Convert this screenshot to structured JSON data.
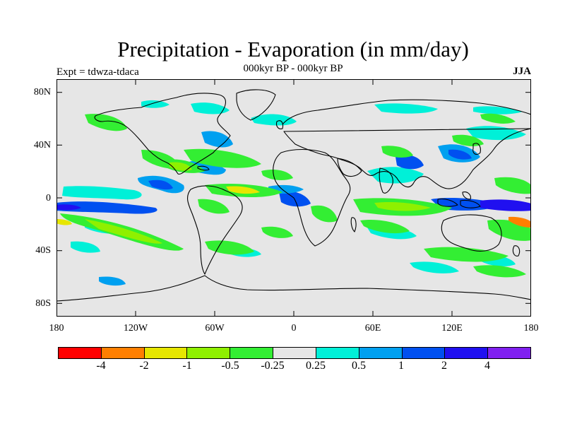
{
  "title": "Precipitation - Evaporation (in mm/day)",
  "subtitle": "000kyr BP - 000kyr BP",
  "left_label": "Expt = tdwza-tdaca",
  "season": "JJA",
  "lat_labels": [
    "80N",
    "40N",
    "0",
    "40S",
    "80S"
  ],
  "lon_labels": [
    "180",
    "120W",
    "60W",
    "0",
    "60E",
    "120E",
    "180"
  ],
  "colorbar": {
    "colors": [
      "#ff0000",
      "#ff7f00",
      "#e6e600",
      "#8ff000",
      "#33ee33",
      "#e6e6e6",
      "#00f0d8",
      "#00a0f0",
      "#0050f0",
      "#2010f0",
      "#8020f0"
    ],
    "labels": [
      "-4",
      "-2",
      "-1",
      "-0.5",
      "-0.25",
      "0.25",
      "0.5",
      "1",
      "2",
      "4"
    ]
  },
  "map": {
    "background_color": "#e6e6e6",
    "projection": "cylindrical-equidistant",
    "lon_range": [
      -180,
      180
    ],
    "lat_range": [
      -90,
      90
    ]
  }
}
